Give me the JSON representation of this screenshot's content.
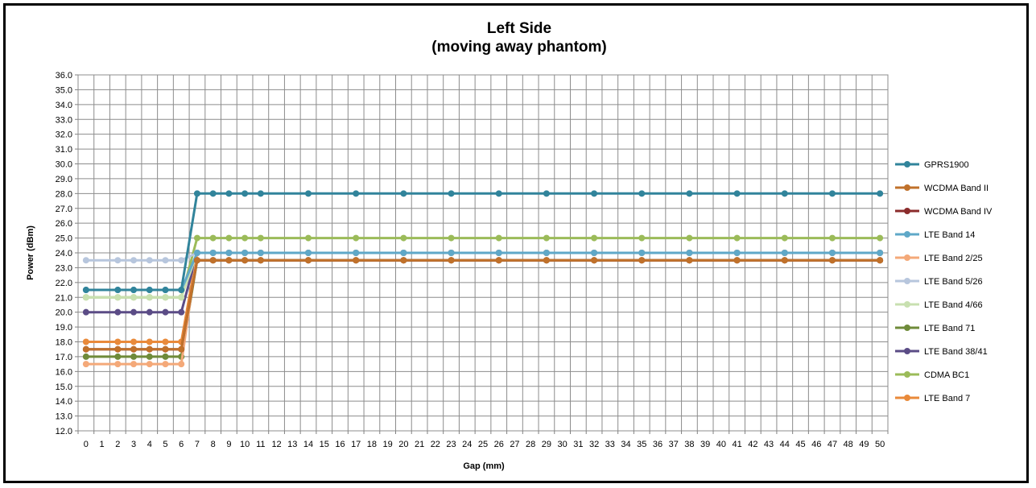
{
  "chart_data": {
    "type": "line",
    "title": "Left Side",
    "subtitle": "(moving away phantom)",
    "xlabel": "Gap (mm)",
    "ylabel": "Power (dBm)",
    "ylim": [
      12,
      36
    ],
    "ystep": 1,
    "categories": [
      "0",
      "1",
      "2",
      "3",
      "4",
      "5",
      "6",
      "7",
      "8",
      "9",
      "10",
      "11",
      "12",
      "13",
      "14",
      "15",
      "16",
      "17",
      "18",
      "19",
      "20",
      "21",
      "22",
      "23",
      "24",
      "25",
      "26",
      "27",
      "28",
      "29",
      "30",
      "31",
      "32",
      "33",
      "34",
      "35",
      "36",
      "37",
      "38",
      "39",
      "40",
      "41",
      "42",
      "43",
      "44",
      "45",
      "46",
      "47",
      "48",
      "49",
      "50"
    ],
    "x": [
      0,
      2,
      3,
      4,
      5,
      6,
      7,
      8,
      9,
      10,
      11,
      14,
      17,
      20,
      23,
      26,
      29,
      32,
      35,
      38,
      41,
      44,
      47,
      50
    ],
    "grid": true,
    "legend_position": "right",
    "series": [
      {
        "name": "GPRS1900",
        "color": "#31849B",
        "values": [
          21.5,
          21.5,
          21.5,
          21.5,
          21.5,
          21.5,
          28,
          28,
          28,
          28,
          28,
          28,
          28,
          28,
          28,
          28,
          28,
          28,
          28,
          28,
          28,
          28,
          28,
          28
        ]
      },
      {
        "name": "WCDMA Band II",
        "color": "#C0712B",
        "values": [
          17.5,
          17.5,
          17.5,
          17.5,
          17.5,
          17.5,
          23.5,
          23.5,
          23.5,
          23.5,
          23.5,
          23.5,
          23.5,
          23.5,
          23.5,
          23.5,
          23.5,
          23.5,
          23.5,
          23.5,
          23.5,
          23.5,
          23.5,
          23.5
        ]
      },
      {
        "name": "WCDMA Band IV",
        "color": "#8B2C2C",
        "values": [
          17.5,
          17.5,
          17.5,
          17.5,
          17.5,
          17.5,
          23.5,
          23.5,
          23.5,
          23.5,
          23.5,
          23.5,
          23.5,
          23.5,
          23.5,
          23.5,
          23.5,
          23.5,
          23.5,
          23.5,
          23.5,
          23.5,
          23.5,
          23.5
        ]
      },
      {
        "name": "LTE Band 14",
        "color": "#5FA8C8",
        "values": [
          21.5,
          21.5,
          21.5,
          21.5,
          21.5,
          21.5,
          24,
          24,
          24,
          24,
          24,
          24,
          24,
          24,
          24,
          24,
          24,
          24,
          24,
          24,
          24,
          24,
          24,
          24
        ]
      },
      {
        "name": "LTE Band 2/25",
        "color": "#F4A979",
        "values": [
          16.5,
          16.5,
          16.5,
          16.5,
          16.5,
          16.5,
          24,
          24,
          24,
          24,
          24,
          24,
          24,
          24,
          24,
          24,
          24,
          24,
          24,
          24,
          24,
          24,
          24,
          24
        ]
      },
      {
        "name": "LTE Band 5/26",
        "color": "#B7C6DD",
        "values": [
          23.5,
          23.5,
          23.5,
          23.5,
          23.5,
          23.5,
          24,
          24,
          24,
          24,
          24,
          24,
          24,
          24,
          24,
          24,
          24,
          24,
          24,
          24,
          24,
          24,
          24,
          24
        ]
      },
      {
        "name": "LTE Band 4/66",
        "color": "#C8E0B0",
        "values": [
          21,
          21,
          21,
          21,
          21,
          21,
          24,
          24,
          24,
          24,
          24,
          24,
          24,
          24,
          24,
          24,
          24,
          24,
          24,
          24,
          24,
          24,
          24,
          24
        ]
      },
      {
        "name": "LTE Band 71",
        "color": "#6F8B3A",
        "values": [
          17,
          17,
          17,
          17,
          17,
          17,
          23.5,
          23.5,
          23.5,
          23.5,
          23.5,
          23.5,
          23.5,
          23.5,
          23.5,
          23.5,
          23.5,
          23.5,
          23.5,
          23.5,
          23.5,
          23.5,
          23.5,
          23.5
        ]
      },
      {
        "name": "LTE Band 38/41",
        "color": "#5B4C86",
        "values": [
          20,
          20,
          20,
          20,
          20,
          20,
          24,
          24,
          24,
          24,
          24,
          24,
          24,
          24,
          24,
          24,
          24,
          24,
          24,
          24,
          24,
          24,
          24,
          24
        ]
      },
      {
        "name": "CDMA BC1",
        "color": "#9BBB59",
        "values": [
          21,
          21,
          21,
          21,
          21,
          21,
          25,
          25,
          25,
          25,
          25,
          25,
          25,
          25,
          25,
          25,
          25,
          25,
          25,
          25,
          25,
          25,
          25,
          25
        ]
      },
      {
        "name": "LTE Band 7",
        "color": "#E98A3A",
        "values": [
          18,
          18,
          18,
          18,
          18,
          18,
          24,
          24,
          24,
          24,
          24,
          24,
          24,
          24,
          24,
          24,
          24,
          24,
          24,
          24,
          24,
          24,
          24,
          24
        ]
      }
    ]
  }
}
